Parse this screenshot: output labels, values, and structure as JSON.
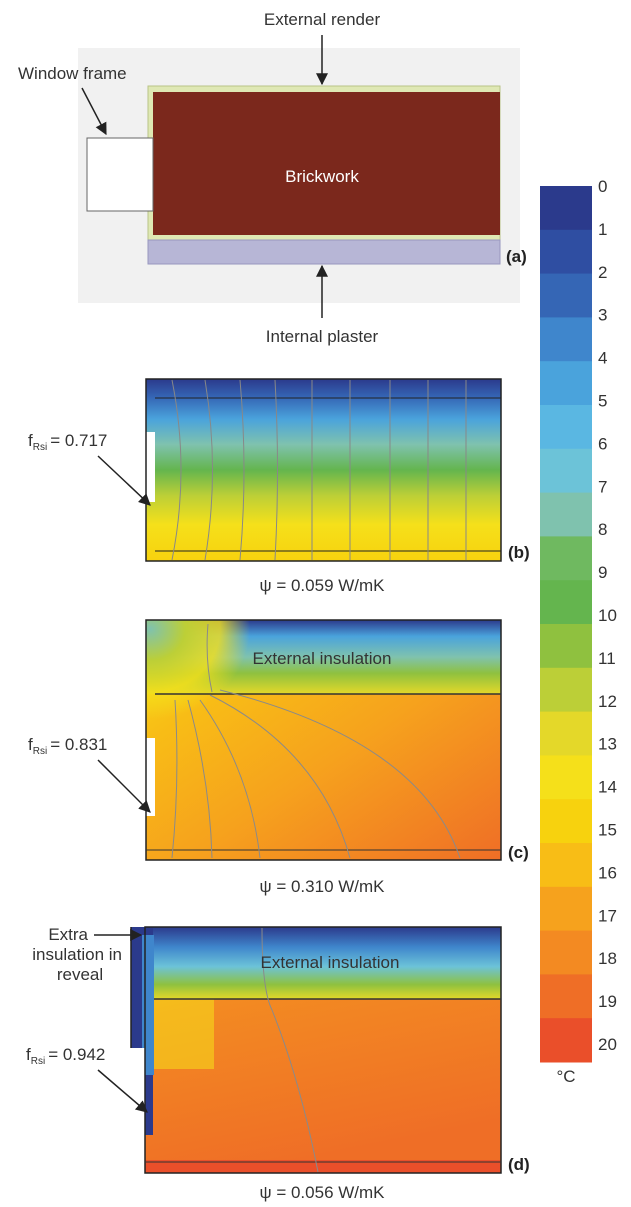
{
  "panel_a": {
    "label": "(a)",
    "external_render": "External render",
    "window_frame": "Window frame",
    "brickwork": "Brickwork",
    "internal_plaster": "Internal plaster"
  },
  "panel_b": {
    "label": "(b)",
    "frsi_value": "= 0.717",
    "psi": "ψ = 0.059 W/mK"
  },
  "panel_c": {
    "label": "(c)",
    "frsi_value": "= 0.831",
    "psi": "ψ = 0.310 W/mK",
    "insulation": "External insulation"
  },
  "panel_d": {
    "label": "(d)",
    "frsi_value": "= 0.942",
    "psi": "ψ = 0.056 W/mK",
    "insulation": "External insulation",
    "reveal_line1": "Extra",
    "reveal_line2": "insulation in",
    "reveal_line3": "reveal"
  },
  "frsi": {
    "symbol": "f",
    "subscript": "Rsi"
  },
  "colorbar": {
    "unit": "°C",
    "ticks": [
      "0",
      "1",
      "2",
      "3",
      "4",
      "5",
      "6",
      "7",
      "8",
      "9",
      "10",
      "11",
      "12",
      "13",
      "14",
      "15",
      "16",
      "17",
      "18",
      "19",
      "20"
    ],
    "colors": [
      "#2b3a8c",
      "#2f4ea2",
      "#3566b5",
      "#3f86cc",
      "#4aa3dc",
      "#5ab7e2",
      "#6cc3d8",
      "#7fc2ae",
      "#6fb960",
      "#64b54e",
      "#8fc13f",
      "#bccf37",
      "#e4d829",
      "#f5e01a",
      "#f7d20e",
      "#f8bd16",
      "#f6a21d",
      "#f38a22",
      "#ef6e26",
      "#ea4f2a"
    ]
  },
  "colors": {
    "brick": "#7b281c",
    "render": "#dfe8b4",
    "plaster": "#b7b6d6",
    "insulation_top": "#2b3a8c"
  }
}
